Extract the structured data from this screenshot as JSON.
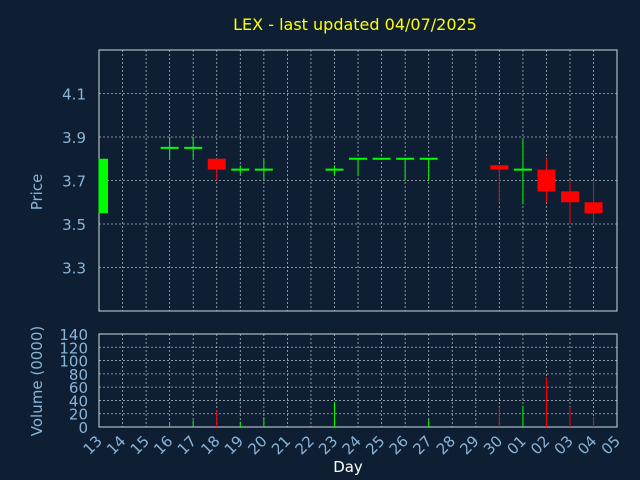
{
  "chart_data": {
    "type": "candlestick",
    "title": "LEX - last updated 04/07/2025",
    "xlabel": "Day",
    "ylabel_price": "Price",
    "ylabel_volume": "Volume (0000)",
    "x_ticks": [
      "13",
      "14",
      "15",
      "16",
      "17",
      "18",
      "19",
      "20",
      "21",
      "22",
      "23",
      "24",
      "25",
      "26",
      "27",
      "28",
      "29",
      "30",
      "01",
      "02",
      "03",
      "04",
      "05"
    ],
    "price_ylim": [
      3.1,
      4.3
    ],
    "price_ticks": [
      "4.1",
      "3.9",
      "3.7",
      "3.5",
      "3.3"
    ],
    "volume_ylim": [
      0,
      140
    ],
    "volume_ticks": [
      "140",
      "120",
      "100",
      "80",
      "60",
      "40",
      "20",
      "0"
    ],
    "grid": true,
    "colors": {
      "up": "#00ff00",
      "down": "#ff0000",
      "title": "#ffff00",
      "axis_text": "#8ab4d8",
      "background": "#0f1f33",
      "grid": "#cfd8e0"
    },
    "candles": [
      {
        "day": "13",
        "open": 3.55,
        "high": 3.8,
        "low": 3.55,
        "close": 3.8
      },
      {
        "day": "16",
        "open": 3.85,
        "high": 3.9,
        "low": 3.8,
        "close": 3.85
      },
      {
        "day": "17",
        "open": 3.85,
        "high": 3.9,
        "low": 3.8,
        "close": 3.85
      },
      {
        "day": "18",
        "open": 3.8,
        "high": 3.8,
        "low": 3.7,
        "close": 3.75
      },
      {
        "day": "19",
        "open": 3.75,
        "high": 3.77,
        "low": 3.73,
        "close": 3.75
      },
      {
        "day": "20",
        "open": 3.75,
        "high": 3.8,
        "low": 3.7,
        "close": 3.75
      },
      {
        "day": "23",
        "open": 3.75,
        "high": 3.77,
        "low": 3.72,
        "close": 3.75
      },
      {
        "day": "24",
        "open": 3.8,
        "high": 3.8,
        "low": 3.72,
        "close": 3.8
      },
      {
        "day": "25",
        "open": 3.8,
        "high": 3.8,
        "low": 3.8,
        "close": 3.8
      },
      {
        "day": "26",
        "open": 3.8,
        "high": 3.8,
        "low": 3.7,
        "close": 3.8
      },
      {
        "day": "27",
        "open": 3.8,
        "high": 3.8,
        "low": 3.7,
        "close": 3.8
      },
      {
        "day": "30",
        "open": 3.77,
        "high": 3.77,
        "low": 3.6,
        "close": 3.75
      },
      {
        "day": "01",
        "open": 3.75,
        "high": 3.89,
        "low": 3.59,
        "close": 3.75
      },
      {
        "day": "02",
        "open": 3.75,
        "high": 3.8,
        "low": 3.6,
        "close": 3.65
      },
      {
        "day": "03",
        "open": 3.65,
        "high": 3.7,
        "low": 3.5,
        "close": 3.6
      },
      {
        "day": "04",
        "open": 3.6,
        "high": 3.7,
        "low": 3.5,
        "close": 3.55
      }
    ],
    "volume": [
      {
        "day": "13",
        "value": 0,
        "color": "#00ff00"
      },
      {
        "day": "16",
        "value": 5,
        "color": "#00ff00"
      },
      {
        "day": "17",
        "value": 10,
        "color": "#00ff00"
      },
      {
        "day": "18",
        "value": 25,
        "color": "#ff0000"
      },
      {
        "day": "19",
        "value": 8,
        "color": "#00ff00"
      },
      {
        "day": "20",
        "value": 15,
        "color": "#00ff00"
      },
      {
        "day": "23",
        "value": 38,
        "color": "#00ff00"
      },
      {
        "day": "27",
        "value": 12,
        "color": "#00ff00"
      },
      {
        "day": "30",
        "value": 30,
        "color": "#ff0000"
      },
      {
        "day": "01",
        "value": 32,
        "color": "#00ff00"
      },
      {
        "day": "02",
        "value": 75,
        "color": "#ff0000"
      },
      {
        "day": "03",
        "value": 30,
        "color": "#ff0000"
      },
      {
        "day": "04",
        "value": 15,
        "color": "#ff0000"
      }
    ]
  }
}
